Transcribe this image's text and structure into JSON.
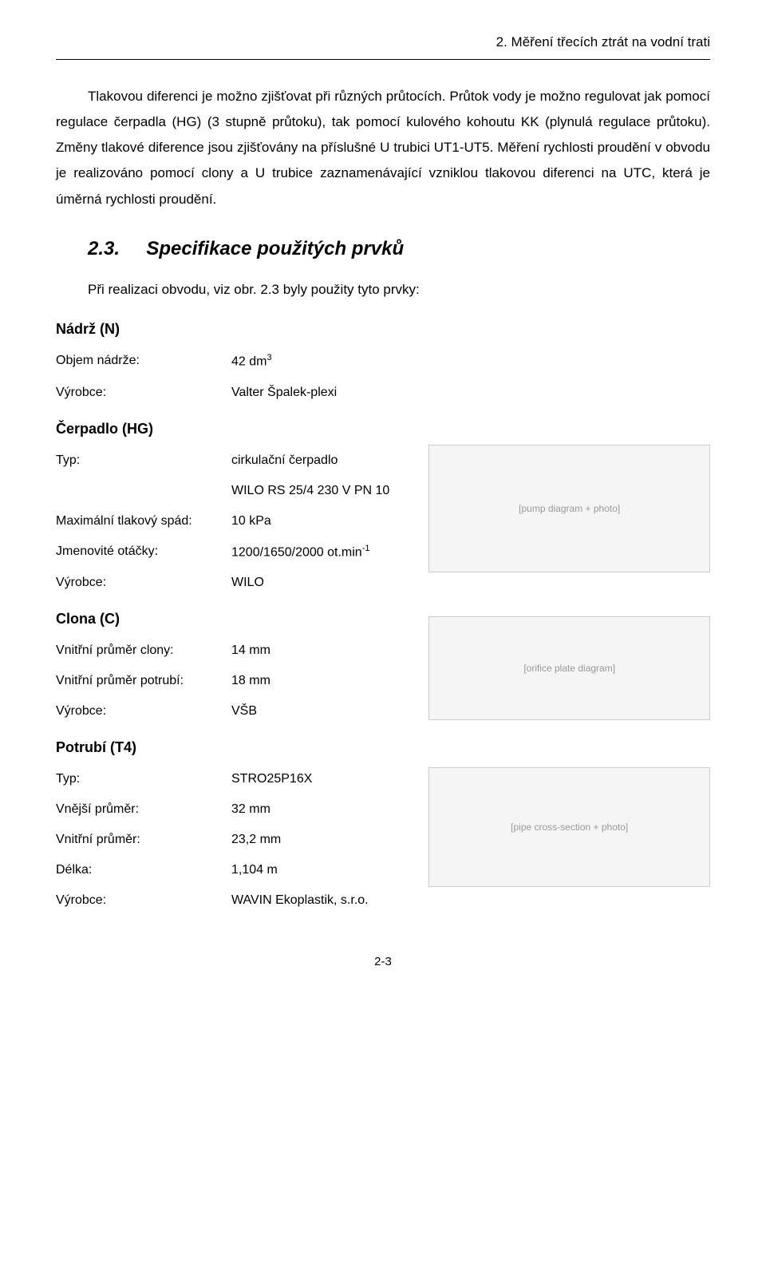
{
  "header": {
    "title": "2. Měření třecích ztrát na vodní trati"
  },
  "paragraph": {
    "text": "Tlakovou diferenci je možno zjišťovat při různých průtocích. Průtok vody je možno regulovat jak pomocí regulace čerpadla (HG) (3 stupně průtoku), tak pomocí kulového kohoutu KK (plynulá regulace průtoku). Změny tlakové diference jsou zjišťovány na příslušné U trubici UT1-UT5. Měření rychlosti proudění v obvodu je realizováno pomocí clony a U trubice zaznamenávající vzniklou tlakovou diferenci na UTC, která je úměrná rychlosti proudění."
  },
  "section": {
    "number": "2.3.",
    "title": "Specifikace použitých prvků",
    "intro": "Při realizaci obvodu, viz obr. 2.3 byly použity tyto prvky:"
  },
  "groups": [
    {
      "title": "Nádrž (N)",
      "rows": [
        {
          "label": "Objem nádrže:",
          "value": "42 dm",
          "sup": "3"
        },
        {
          "label": "Výrobce:",
          "value": "Valter Špalek-plexi"
        }
      ],
      "image": null
    },
    {
      "title": "Čerpadlo (HG)",
      "rows": [
        {
          "label": "Typ:",
          "value": "cirkulační čerpadlo"
        },
        {
          "label": "",
          "value": "WILO RS 25/4 230 V PN 10"
        },
        {
          "label": "Maximální tlakový spád:",
          "value": "10 kPa"
        },
        {
          "label": "Jmenovité otáčky:",
          "value": "1200/1650/2000 ot.min",
          "sup": "-1"
        },
        {
          "label": "Výrobce:",
          "value": " WILO"
        }
      ],
      "image": {
        "cls": "ph-pump",
        "alt": "pump diagram + photo"
      }
    },
    {
      "title": "Clona (C)",
      "rows": [
        {
          "label": "Vnitřní průměr clony:",
          "value": "14 mm"
        },
        {
          "label": "Vnitřní průměr potrubí:",
          "value": "18 mm"
        },
        {
          "label": "Výrobce:",
          "value": "VŠB"
        }
      ],
      "image": {
        "cls": "ph-clona",
        "alt": "orifice plate diagram"
      }
    },
    {
      "title": "Potrubí (T4)",
      "rows": [
        {
          "label": "Typ:",
          "value": "STRO25P16X"
        },
        {
          "label": "Vnější průměr:",
          "value": "32 mm"
        },
        {
          "label": "Vnitřní průměr:",
          "value": "23,2 mm"
        },
        {
          "label": "Délka:",
          "value": "1,104 m"
        },
        {
          "label": "Výrobce:",
          "value": "WAVIN Ekoplastik, s.r.o."
        }
      ],
      "image": {
        "cls": "ph-pipe",
        "alt": "pipe cross-section + photo"
      }
    }
  ],
  "footer": {
    "page": "2-3"
  }
}
